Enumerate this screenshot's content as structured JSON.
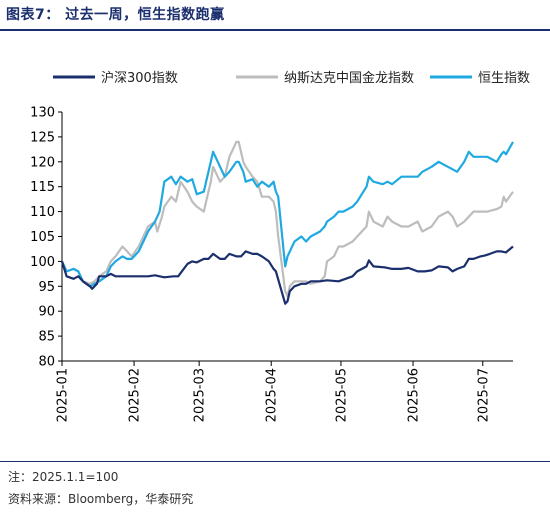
{
  "figure": {
    "title": "图表7：  过去一周，恒生指数跑赢",
    "note": "注：2025.1.1=100",
    "source": "资料来源：Bloomberg，华泰研究"
  },
  "chart_data": {
    "type": "line",
    "xlabel": "",
    "ylabel": "",
    "ylim": [
      80,
      130
    ],
    "yticks": [
      80,
      85,
      90,
      95,
      100,
      105,
      110,
      115,
      120,
      125,
      130
    ],
    "xlim": [
      "2025-01-01",
      "2025-07-14"
    ],
    "xticks": [
      "2025-01",
      "2025-02",
      "2025-03",
      "2025-04",
      "2025-05",
      "2025-06",
      "2025-07"
    ],
    "grid": false,
    "legend_position": "top",
    "series": [
      {
        "name": "沪深300指数",
        "color": "#1b2f6e",
        "points": [
          [
            "2025-01-01",
            100
          ],
          [
            "2025-01-03",
            97
          ],
          [
            "2025-01-06",
            96.5
          ],
          [
            "2025-01-08",
            97
          ],
          [
            "2025-01-10",
            96
          ],
          [
            "2025-01-13",
            95
          ],
          [
            "2025-01-14",
            94.5
          ],
          [
            "2025-01-16",
            95.5
          ],
          [
            "2025-01-17",
            97
          ],
          [
            "2025-01-20",
            97
          ],
          [
            "2025-01-22",
            97.5
          ],
          [
            "2025-01-24",
            97
          ],
          [
            "2025-01-27",
            97
          ],
          [
            "2025-02-05",
            97
          ],
          [
            "2025-02-07",
            97
          ],
          [
            "2025-02-10",
            97.2
          ],
          [
            "2025-02-12",
            97
          ],
          [
            "2025-02-14",
            96.8
          ],
          [
            "2025-02-18",
            97
          ],
          [
            "2025-02-20",
            97
          ],
          [
            "2025-02-24",
            99.5
          ],
          [
            "2025-02-26",
            100
          ],
          [
            "2025-02-28",
            99.8
          ],
          [
            "2025-03-03",
            100.5
          ],
          [
            "2025-03-05",
            100.5
          ],
          [
            "2025-03-07",
            101.5
          ],
          [
            "2025-03-10",
            100.5
          ],
          [
            "2025-03-12",
            100.5
          ],
          [
            "2025-03-14",
            101.5
          ],
          [
            "2025-03-17",
            101
          ],
          [
            "2025-03-19",
            101
          ],
          [
            "2025-03-21",
            102
          ],
          [
            "2025-03-24",
            101.5
          ],
          [
            "2025-03-26",
            101.5
          ],
          [
            "2025-03-28",
            101
          ],
          [
            "2025-03-31",
            100
          ],
          [
            "2025-04-02",
            98.5
          ],
          [
            "2025-04-03",
            98
          ],
          [
            "2025-04-07",
            91.5
          ],
          [
            "2025-04-08",
            92
          ],
          [
            "2025-04-09",
            94
          ],
          [
            "2025-04-11",
            95
          ],
          [
            "2025-04-14",
            95.5
          ],
          [
            "2025-04-16",
            95.5
          ],
          [
            "2025-04-18",
            96
          ],
          [
            "2025-04-22",
            96
          ],
          [
            "2025-04-25",
            96.2
          ],
          [
            "2025-04-30",
            96
          ],
          [
            "2025-05-06",
            97
          ],
          [
            "2025-05-08",
            98
          ],
          [
            "2025-05-12",
            99
          ],
          [
            "2025-05-13",
            100.2
          ],
          [
            "2025-05-15",
            99
          ],
          [
            "2025-05-20",
            98.8
          ],
          [
            "2025-05-23",
            98.5
          ],
          [
            "2025-05-27",
            98.5
          ],
          [
            "2025-05-30",
            98.7
          ],
          [
            "2025-06-03",
            98
          ],
          [
            "2025-06-06",
            98
          ],
          [
            "2025-06-09",
            98.2
          ],
          [
            "2025-06-12",
            99
          ],
          [
            "2025-06-16",
            98.8
          ],
          [
            "2025-06-18",
            98
          ],
          [
            "2025-06-20",
            98.5
          ],
          [
            "2025-06-23",
            99
          ],
          [
            "2025-06-25",
            100.5
          ],
          [
            "2025-06-27",
            100.5
          ],
          [
            "2025-06-30",
            101
          ],
          [
            "2025-07-02",
            101.2
          ],
          [
            "2025-07-04",
            101.5
          ],
          [
            "2025-07-07",
            102
          ],
          [
            "2025-07-09",
            102
          ],
          [
            "2025-07-11",
            101.8
          ],
          [
            "2025-07-14",
            103
          ]
        ]
      },
      {
        "name": "纳斯达克中国金龙指数",
        "color": "#bdbdbd",
        "points": [
          [
            "2025-01-01",
            100
          ],
          [
            "2025-01-03",
            98
          ],
          [
            "2025-01-06",
            98.5
          ],
          [
            "2025-01-08",
            98
          ],
          [
            "2025-01-10",
            96
          ],
          [
            "2025-01-13",
            95.5
          ],
          [
            "2025-01-15",
            96
          ],
          [
            "2025-01-17",
            97
          ],
          [
            "2025-01-20",
            98
          ],
          [
            "2025-01-22",
            100
          ],
          [
            "2025-01-24",
            101
          ],
          [
            "2025-01-27",
            103
          ],
          [
            "2025-01-29",
            102
          ],
          [
            "2025-01-31",
            101
          ],
          [
            "2025-02-03",
            103
          ],
          [
            "2025-02-05",
            105
          ],
          [
            "2025-02-07",
            107
          ],
          [
            "2025-02-10",
            108
          ],
          [
            "2025-02-11",
            106
          ],
          [
            "2025-02-13",
            109
          ],
          [
            "2025-02-14",
            111
          ],
          [
            "2025-02-17",
            113
          ],
          [
            "2025-02-19",
            112
          ],
          [
            "2025-02-21",
            116
          ],
          [
            "2025-02-24",
            114
          ],
          [
            "2025-02-26",
            112
          ],
          [
            "2025-02-28",
            111
          ],
          [
            "2025-03-03",
            110
          ],
          [
            "2025-03-04",
            112
          ],
          [
            "2025-03-06",
            116
          ],
          [
            "2025-03-07",
            119
          ],
          [
            "2025-03-10",
            116
          ],
          [
            "2025-03-12",
            117
          ],
          [
            "2025-03-14",
            121
          ],
          [
            "2025-03-17",
            124
          ],
          [
            "2025-03-18",
            124
          ],
          [
            "2025-03-20",
            120
          ],
          [
            "2025-03-21",
            119
          ],
          [
            "2025-03-24",
            117
          ],
          [
            "2025-03-26",
            116
          ],
          [
            "2025-03-28",
            113
          ],
          [
            "2025-03-31",
            113
          ],
          [
            "2025-04-02",
            112
          ],
          [
            "2025-04-03",
            110
          ],
          [
            "2025-04-04",
            105
          ],
          [
            "2025-04-07",
            94
          ],
          [
            "2025-04-08",
            93
          ],
          [
            "2025-04-09",
            95
          ],
          [
            "2025-04-11",
            96
          ],
          [
            "2025-04-14",
            96
          ],
          [
            "2025-04-16",
            96
          ],
          [
            "2025-04-18",
            95.5
          ],
          [
            "2025-04-22",
            96
          ],
          [
            "2025-04-24",
            97
          ],
          [
            "2025-04-25",
            100
          ],
          [
            "2025-04-28",
            101
          ],
          [
            "2025-04-30",
            103
          ],
          [
            "2025-05-02",
            103
          ],
          [
            "2025-05-06",
            104
          ],
          [
            "2025-05-08",
            105
          ],
          [
            "2025-05-12",
            107
          ],
          [
            "2025-05-13",
            110
          ],
          [
            "2025-05-15",
            108
          ],
          [
            "2025-05-19",
            107
          ],
          [
            "2025-05-21",
            109
          ],
          [
            "2025-05-23",
            108
          ],
          [
            "2025-05-27",
            107
          ],
          [
            "2025-05-30",
            107
          ],
          [
            "2025-06-03",
            108
          ],
          [
            "2025-06-05",
            106
          ],
          [
            "2025-06-09",
            107
          ],
          [
            "2025-06-12",
            109
          ],
          [
            "2025-06-16",
            110
          ],
          [
            "2025-06-18",
            109
          ],
          [
            "2025-06-20",
            107
          ],
          [
            "2025-06-23",
            108
          ],
          [
            "2025-06-25",
            109
          ],
          [
            "2025-06-27",
            110
          ],
          [
            "2025-06-30",
            110
          ],
          [
            "2025-07-03",
            110
          ],
          [
            "2025-07-07",
            110.5
          ],
          [
            "2025-07-09",
            111
          ],
          [
            "2025-07-10",
            113
          ],
          [
            "2025-07-11",
            112
          ],
          [
            "2025-07-14",
            114
          ]
        ]
      },
      {
        "name": "恒生指数",
        "color": "#1fa9e1",
        "points": [
          [
            "2025-01-01",
            100
          ],
          [
            "2025-01-03",
            98
          ],
          [
            "2025-01-06",
            98.5
          ],
          [
            "2025-01-08",
            98
          ],
          [
            "2025-01-10",
            96
          ],
          [
            "2025-01-13",
            95
          ],
          [
            "2025-01-15",
            95.5
          ],
          [
            "2025-01-17",
            96
          ],
          [
            "2025-01-20",
            97
          ],
          [
            "2025-01-22",
            99
          ],
          [
            "2025-01-24",
            100
          ],
          [
            "2025-01-27",
            101
          ],
          [
            "2025-01-29",
            100.5
          ],
          [
            "2025-01-31",
            100.5
          ],
          [
            "2025-02-03",
            102
          ],
          [
            "2025-02-05",
            104
          ],
          [
            "2025-02-07",
            106
          ],
          [
            "2025-02-10",
            108
          ],
          [
            "2025-02-12",
            110
          ],
          [
            "2025-02-13",
            113
          ],
          [
            "2025-02-14",
            116
          ],
          [
            "2025-02-17",
            117
          ],
          [
            "2025-02-19",
            115.5
          ],
          [
            "2025-02-21",
            117
          ],
          [
            "2025-02-24",
            116
          ],
          [
            "2025-02-26",
            116.5
          ],
          [
            "2025-02-28",
            113.5
          ],
          [
            "2025-03-03",
            114
          ],
          [
            "2025-03-04",
            116
          ],
          [
            "2025-03-06",
            120
          ],
          [
            "2025-03-07",
            122
          ],
          [
            "2025-03-10",
            119
          ],
          [
            "2025-03-12",
            117
          ],
          [
            "2025-03-14",
            118
          ],
          [
            "2025-03-17",
            120
          ],
          [
            "2025-03-18",
            120
          ],
          [
            "2025-03-20",
            118
          ],
          [
            "2025-03-21",
            116
          ],
          [
            "2025-03-24",
            116.5
          ],
          [
            "2025-03-26",
            115
          ],
          [
            "2025-03-28",
            116
          ],
          [
            "2025-03-31",
            115
          ],
          [
            "2025-04-02",
            116
          ],
          [
            "2025-04-03",
            114
          ],
          [
            "2025-04-04",
            113
          ],
          [
            "2025-04-07",
            99
          ],
          [
            "2025-04-08",
            101
          ],
          [
            "2025-04-09",
            102
          ],
          [
            "2025-04-11",
            104
          ],
          [
            "2025-04-14",
            105
          ],
          [
            "2025-04-16",
            104
          ],
          [
            "2025-04-18",
            105
          ],
          [
            "2025-04-22",
            106
          ],
          [
            "2025-04-24",
            107
          ],
          [
            "2025-04-25",
            108
          ],
          [
            "2025-04-28",
            109
          ],
          [
            "2025-04-30",
            110
          ],
          [
            "2025-05-02",
            110
          ],
          [
            "2025-05-06",
            111
          ],
          [
            "2025-05-08",
            112
          ],
          [
            "2025-05-12",
            115
          ],
          [
            "2025-05-13",
            117
          ],
          [
            "2025-05-15",
            116
          ],
          [
            "2025-05-19",
            115.5
          ],
          [
            "2025-05-21",
            116
          ],
          [
            "2025-05-23",
            115.5
          ],
          [
            "2025-05-27",
            117
          ],
          [
            "2025-05-30",
            117
          ],
          [
            "2025-06-03",
            117
          ],
          [
            "2025-06-05",
            118
          ],
          [
            "2025-06-09",
            119
          ],
          [
            "2025-06-12",
            120
          ],
          [
            "2025-06-16",
            119
          ],
          [
            "2025-06-18",
            118.5
          ],
          [
            "2025-06-20",
            118
          ],
          [
            "2025-06-23",
            120
          ],
          [
            "2025-06-25",
            122
          ],
          [
            "2025-06-27",
            121
          ],
          [
            "2025-06-30",
            121
          ],
          [
            "2025-07-03",
            121
          ],
          [
            "2025-07-07",
            120
          ],
          [
            "2025-07-09",
            121.5
          ],
          [
            "2025-07-10",
            122
          ],
          [
            "2025-07-11",
            121.5
          ],
          [
            "2025-07-14",
            124
          ]
        ]
      }
    ]
  }
}
